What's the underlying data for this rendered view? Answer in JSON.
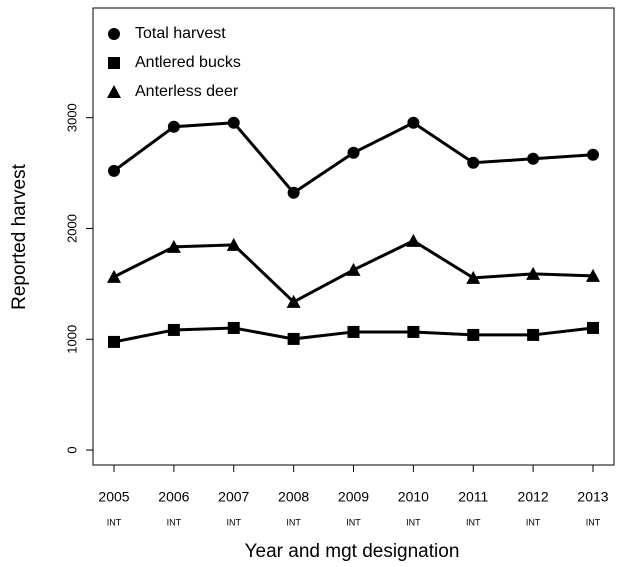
{
  "chart_data": {
    "type": "line",
    "xlabel": "Year and mgt designation",
    "ylabel": "Reported harvest",
    "categories": [
      "2005",
      "2006",
      "2007",
      "2008",
      "2009",
      "2010",
      "2011",
      "2012",
      "2013"
    ],
    "designations": [
      "INT",
      "INT",
      "INT",
      "INT",
      "INT",
      "INT",
      "INT",
      "INT",
      "INT"
    ],
    "series": [
      {
        "name": "Total harvest",
        "color": "#000000",
        "marker": "circle",
        "values": [
          2520,
          2918,
          2954,
          2322,
          2683,
          2954,
          2593,
          2629,
          2665
        ]
      },
      {
        "name": "Antlered bucks",
        "color": "#000000",
        "marker": "square",
        "values": [
          976,
          1084,
          1102,
          1003,
          1066,
          1066,
          1039,
          1039,
          1102
        ]
      },
      {
        "name": "Anterless deer",
        "color": "#000000",
        "marker": "triangle",
        "values": [
          1563,
          1834,
          1852,
          1337,
          1626,
          1888,
          1554,
          1590,
          1572
        ]
      }
    ],
    "ylim": [
      -135,
      3990
    ],
    "yticks": [
      0,
      1000,
      2000,
      3000
    ],
    "legend": "top-left",
    "grid": false
  }
}
